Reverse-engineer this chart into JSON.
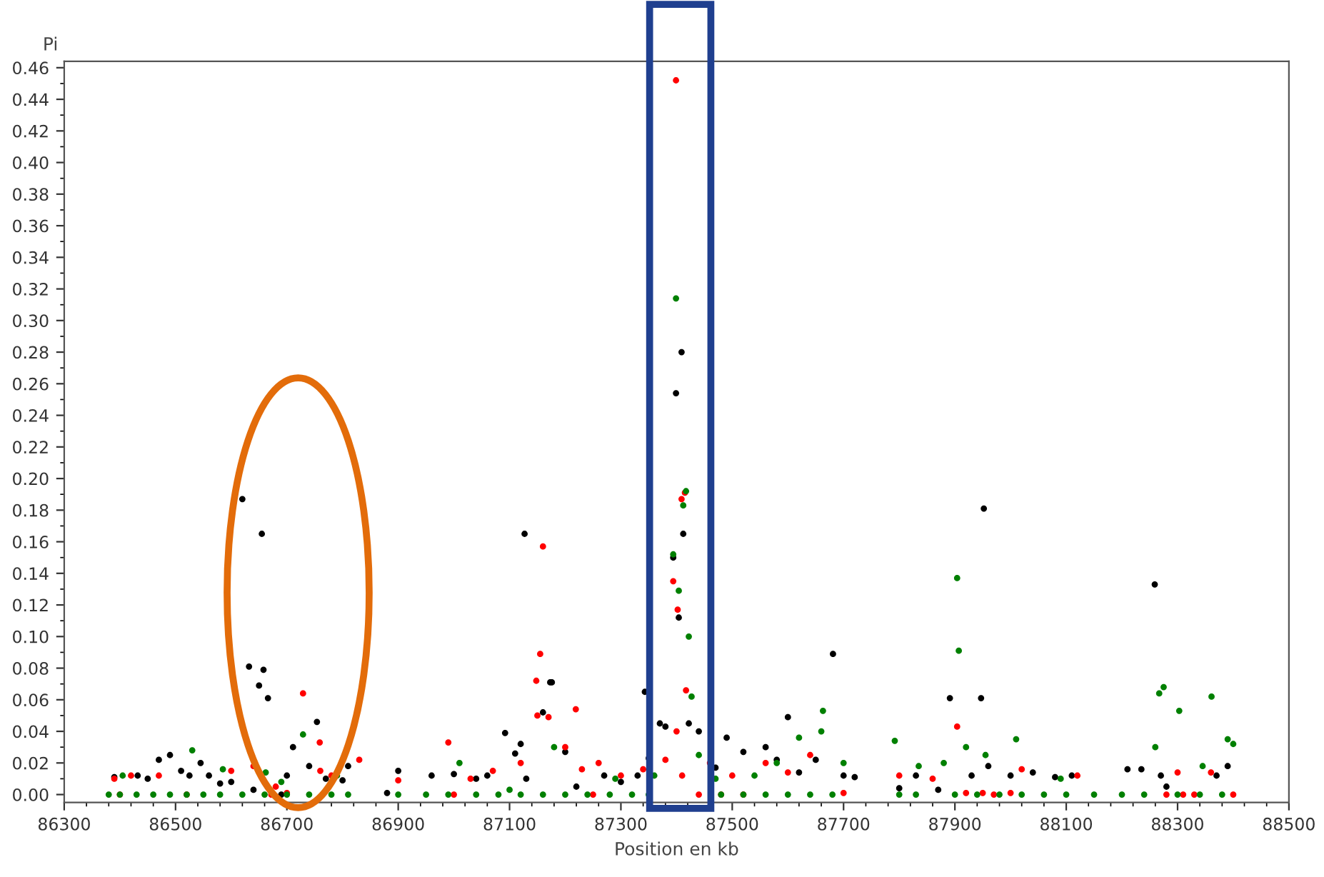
{
  "chart_data": {
    "type": "scatter",
    "xlabel": "Position en kb",
    "ylabel": "Pi",
    "xlim": [
      86300,
      88500
    ],
    "xticks": [
      86300,
      86500,
      86700,
      86900,
      87100,
      87300,
      87500,
      87700,
      87900,
      88100,
      88300,
      88500
    ],
    "ylim": [
      -0.005,
      0.464
    ],
    "yticks": [
      {
        "value": 0,
        "label": "0.00"
      },
      {
        "value": 0.02,
        "label": "0.02"
      },
      {
        "value": 0.04,
        "label": "0.04"
      },
      {
        "value": 0.06,
        "label": "0.06"
      },
      {
        "value": 0.08,
        "label": "0.08"
      },
      {
        "value": 0.1,
        "label": "0.10"
      },
      {
        "value": 0.12,
        "label": "0.12"
      },
      {
        "value": 0.14,
        "label": "0.14"
      },
      {
        "value": 0.16,
        "label": "0.16"
      },
      {
        "value": 0.18,
        "label": "0.18"
      },
      {
        "value": 0.2,
        "label": "0.20"
      },
      {
        "value": 0.22,
        "label": "0.22"
      },
      {
        "value": 0.24,
        "label": "0.24"
      },
      {
        "value": 0.26,
        "label": "0.26"
      },
      {
        "value": 0.28,
        "label": "0.28"
      },
      {
        "value": 0.3,
        "label": "0.30"
      },
      {
        "value": 0.32,
        "label": "0.32"
      },
      {
        "value": 0.34,
        "label": "0.34"
      },
      {
        "value": 0.36,
        "label": "0.36"
      },
      {
        "value": 0.38,
        "label": "0.38"
      },
      {
        "value": 0.4,
        "label": "0.40"
      },
      {
        "value": 0.42,
        "label": "0.42"
      },
      {
        "value": 0.44,
        "label": "0.44"
      },
      {
        "value": 0.46,
        "label": "0.46"
      }
    ],
    "grid": false,
    "legend": false,
    "marker": "circle",
    "series": [
      {
        "color": "#000000",
        "x": [
          86620,
          86655,
          86632,
          86658,
          86650,
          86666,
          86754,
          86711,
          87127,
          87173,
          87160,
          87412,
          87409,
          87399,
          87394,
          87404,
          87422,
          87681,
          87600,
          87952,
          88259,
          87891,
          87947,
          87343,
          87176,
          87092,
          86390,
          86432,
          86450,
          86470,
          86490,
          86510,
          86525,
          86545,
          86560,
          86580,
          86600,
          86640,
          86690,
          86700,
          86740,
          86770,
          86800,
          86810,
          86880,
          86900,
          86960,
          87000,
          87040,
          87060,
          87110,
          87120,
          87130,
          87200,
          87220,
          87270,
          87300,
          87330,
          87350,
          87370,
          87380,
          87440,
          87470,
          87490,
          87520,
          87560,
          87580,
          87620,
          87650,
          87700,
          87720,
          87800,
          87830,
          87870,
          87930,
          87960,
          88000,
          88040,
          88080,
          88110,
          88210,
          88235,
          88270,
          88280,
          88370,
          88390
        ],
        "values": [
          0.187,
          0.165,
          0.081,
          0.079,
          0.069,
          0.061,
          0.046,
          0.03,
          0.165,
          0.071,
          0.052,
          0.165,
          0.28,
          0.254,
          0.15,
          0.112,
          0.045,
          0.089,
          0.049,
          0.181,
          0.133,
          0.061,
          0.061,
          0.065,
          0.071,
          0.039,
          0.011,
          0.012,
          0.01,
          0.022,
          0.025,
          0.015,
          0.012,
          0.02,
          0.012,
          0.007,
          0.008,
          0.003,
          0.0,
          0.012,
          0.018,
          0.01,
          0.009,
          0.018,
          0.001,
          0.015,
          0.012,
          0.013,
          0.01,
          0.012,
          0.026,
          0.032,
          0.01,
          0.027,
          0.005,
          0.012,
          0.008,
          0.012,
          0.023,
          0.045,
          0.043,
          0.04,
          0.017,
          0.036,
          0.027,
          0.03,
          0.022,
          0.014,
          0.022,
          0.012,
          0.011,
          0.004,
          0.012,
          0.003,
          0.012,
          0.018,
          0.012,
          0.014,
          0.011,
          0.012,
          0.016,
          0.016,
          0.012,
          0.005,
          0.012,
          0.018
        ]
      },
      {
        "color": "#ff0000",
        "x": [
          87399,
          87409,
          87415,
          87160,
          87394,
          87402,
          87155,
          87148,
          87417,
          86729,
          86759,
          87904,
          87219,
          86390,
          86420,
          86470,
          86600,
          86640,
          86680,
          86700,
          86760,
          86780,
          86830,
          86900,
          86990,
          87030,
          87070,
          87120,
          87150,
          87170,
          87200,
          87230,
          87260,
          87300,
          87340,
          87380,
          87400,
          87410,
          87440,
          87460,
          87500,
          87560,
          87600,
          87640,
          87700,
          87800,
          87860,
          87920,
          87950,
          88000,
          88020,
          88120,
          88280,
          88300,
          88360,
          88400,
          86400,
          86520,
          86672,
          87000,
          87250,
          87480,
          87520,
          87970,
          88310,
          88330
        ],
        "values": [
          0.452,
          0.187,
          0.191,
          0.157,
          0.135,
          0.117,
          0.089,
          0.072,
          0.066,
          0.064,
          0.033,
          0.043,
          0.054,
          0.01,
          0.012,
          0.012,
          0.015,
          0.018,
          0.005,
          0.001,
          0.015,
          0.012,
          0.022,
          0.009,
          0.033,
          0.01,
          0.015,
          0.02,
          0.05,
          0.049,
          0.03,
          0.016,
          0.02,
          0.012,
          0.016,
          0.022,
          0.04,
          0.012,
          0.0,
          0.02,
          0.012,
          0.02,
          0.014,
          0.025,
          0.001,
          0.012,
          0.01,
          0.001,
          0.001,
          0.001,
          0.016,
          0.012,
          0.0,
          0.014,
          0.014,
          0.0,
          0.0,
          0.0,
          0.0,
          0.0,
          0.0,
          0.0,
          0.0,
          0.0,
          0.0,
          0.0
        ]
      },
      {
        "color": "#008000",
        "x": [
          87399,
          87417,
          87412,
          87394,
          87404,
          87422,
          87427,
          87904,
          87907,
          88275,
          88267,
          88361,
          88303,
          87663,
          87792,
          86729,
          86380,
          86400,
          86430,
          86460,
          86490,
          86520,
          86550,
          86580,
          86620,
          86660,
          86700,
          86740,
          86780,
          86810,
          86900,
          86950,
          86990,
          87040,
          87080,
          87120,
          87160,
          87200,
          87240,
          87280,
          87320,
          87350,
          87480,
          87520,
          87560,
          87600,
          87640,
          87680,
          87800,
          87830,
          87900,
          87940,
          87980,
          88020,
          88060,
          88100,
          88150,
          88200,
          88240,
          88300,
          88340,
          88380,
          86405,
          86530,
          86585,
          86662,
          86690,
          86790,
          87010,
          87100,
          87180,
          87290,
          87360,
          87440,
          87470,
          87540,
          87580,
          87620,
          87660,
          87700,
          87835,
          87880,
          87920,
          87955,
          88010,
          88090,
          88260,
          88345,
          88390,
          88400
        ],
        "values": [
          0.314,
          0.192,
          0.183,
          0.152,
          0.129,
          0.1,
          0.062,
          0.137,
          0.091,
          0.068,
          0.064,
          0.062,
          0.053,
          0.053,
          0.034,
          0.038,
          0.0,
          0.0,
          0.0,
          0.0,
          0.0,
          0.0,
          0.0,
          0.0,
          0.0,
          0.0,
          0.0,
          0.0,
          0.0,
          0.0,
          0.0,
          0.0,
          0.0,
          0.0,
          0.0,
          0.0,
          0.0,
          0.0,
          0.0,
          0.0,
          0.0,
          0.0,
          0.0,
          0.0,
          0.0,
          0.0,
          0.0,
          0.0,
          0.0,
          0.0,
          0.0,
          0.0,
          0.0,
          0.0,
          0.0,
          0.0,
          0.0,
          0.0,
          0.0,
          0.0,
          0.0,
          0.0,
          0.012,
          0.028,
          0.016,
          0.014,
          0.008,
          0.012,
          0.02,
          0.003,
          0.03,
          0.01,
          0.012,
          0.025,
          0.01,
          0.012,
          0.02,
          0.036,
          0.04,
          0.02,
          0.018,
          0.02,
          0.03,
          0.025,
          0.035,
          0.01,
          0.03,
          0.018,
          0.035,
          0.032
        ]
      }
    ]
  }
}
